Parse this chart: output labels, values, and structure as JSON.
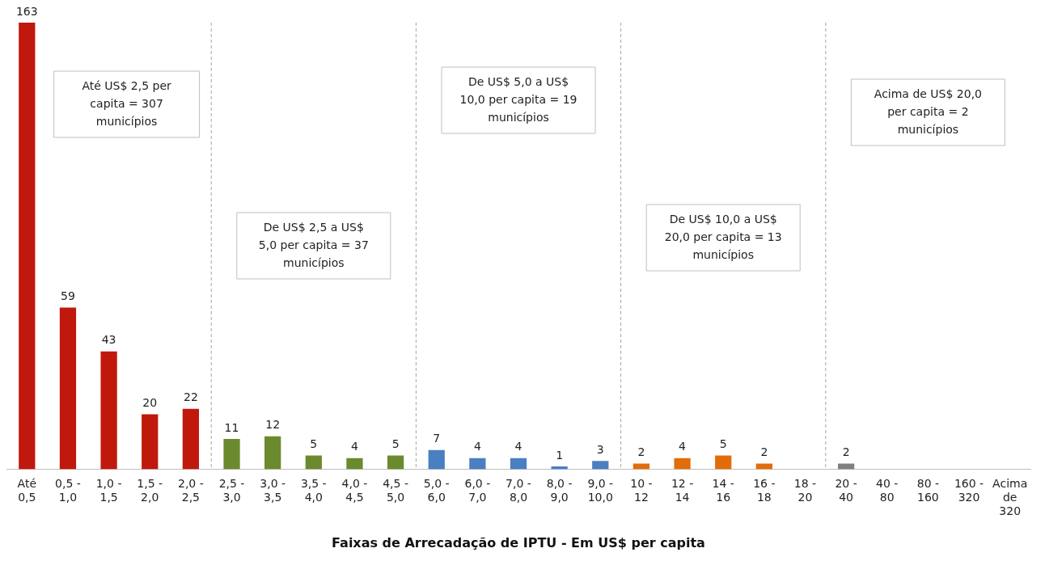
{
  "chart_data": {
    "type": "bar",
    "xlabel": "Faixas de Arrecadação de IPTU - Em US$ per capita",
    "categories": [
      "Até\n0,5",
      "0,5 -\n1,0",
      "1,0 -\n1,5",
      "1,5 -\n2,0",
      "2,0 -\n2,5",
      "2,5 -\n3,0",
      "3,0 -\n3,5",
      "3,5 -\n4,0",
      "4,0 -\n4,5",
      "4,5 -\n5,0",
      "5,0 -\n6,0",
      "6,0 -\n7,0",
      "7,0 -\n8,0",
      "8,0 -\n9,0",
      "9,0 -\n10,0",
      "10 -\n12",
      "12 -\n14",
      "14 -\n16",
      "16 -\n18",
      "18 -\n20",
      "20 -\n40",
      "40 -\n80",
      "80 -\n160",
      "160 -\n320",
      "Acima\nde\n320"
    ],
    "values": [
      163,
      59,
      43,
      20,
      22,
      11,
      12,
      5,
      4,
      5,
      7,
      4,
      4,
      1,
      3,
      2,
      4,
      5,
      2,
      null,
      2,
      null,
      null,
      null,
      null
    ],
    "colors": [
      "#c0180c",
      "#c0180c",
      "#c0180c",
      "#c0180c",
      "#c0180c",
      "#6b8a2e",
      "#6b8a2e",
      "#6b8a2e",
      "#6b8a2e",
      "#6b8a2e",
      "#4a7fc1",
      "#4a7fc1",
      "#4a7fc1",
      "#4a7fc1",
      "#4a7fc1",
      "#e36c0a",
      "#e36c0a",
      "#e36c0a",
      "#e36c0a",
      "#e36c0a",
      "#808080",
      "#808080",
      "#808080",
      "#808080",
      "#808080"
    ],
    "data_labels": true,
    "grid": false,
    "legend": false,
    "annotations": [
      "Até US$ 2,5 per capita = 307 municípios",
      "De US$ 2,5 a US$ 5,0 per capita = 37 municípios",
      "De US$ 5,0 a US$ 10,0 per capita = 19 municípios",
      "De US$ 10,0 a US$ 20,0 per capita = 13 municípios",
      "Acima de US$ 20,0 per capita = 2 municípios"
    ]
  }
}
